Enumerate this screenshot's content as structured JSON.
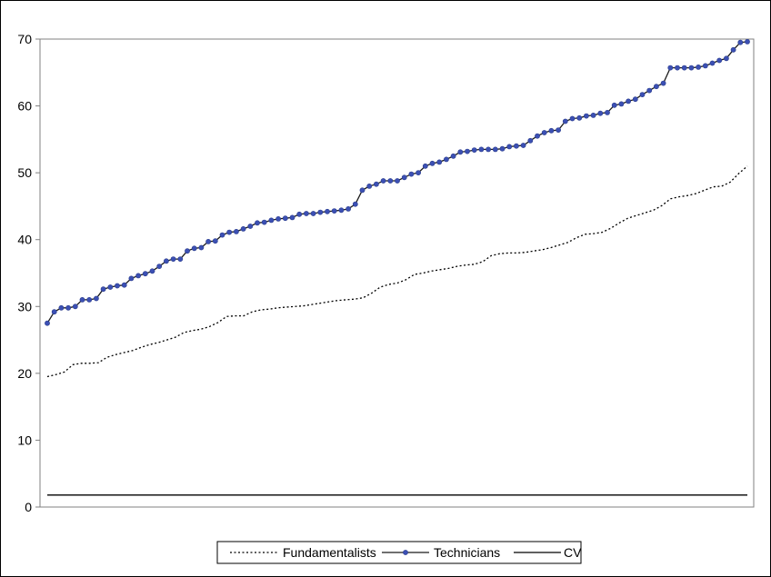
{
  "chart_data": {
    "type": "line",
    "title": "",
    "xlabel": "",
    "ylabel": "",
    "ylim": [
      0,
      70
    ],
    "y_ticks": [
      "0",
      "10",
      "20",
      "30",
      "40",
      "50",
      "60",
      "70"
    ],
    "grid": false,
    "legend_position": "bottom",
    "series": [
      {
        "name": "Fundamentalists",
        "style": "dotted",
        "color": "#000000",
        "values": [
          19.5,
          19.8,
          20.2,
          21.3,
          21.5,
          21.5,
          21.6,
          22.4,
          22.8,
          23.1,
          23.4,
          23.9,
          24.3,
          24.6,
          25.0,
          25.4,
          26.1,
          26.4,
          26.6,
          27.0,
          27.6,
          28.5,
          28.6,
          28.6,
          29.2,
          29.5,
          29.6,
          29.8,
          29.9,
          30.0,
          30.1,
          30.3,
          30.5,
          30.7,
          30.9,
          31.0,
          31.1,
          31.3,
          32.0,
          32.9,
          33.3,
          33.5,
          34.0,
          34.8,
          35.0,
          35.3,
          35.5,
          35.7,
          36.0,
          36.2,
          36.3,
          36.7,
          37.6,
          37.9,
          38.0,
          38.0,
          38.1,
          38.3,
          38.5,
          38.8,
          39.2,
          39.6,
          40.3,
          40.8,
          40.9,
          41.1,
          41.7,
          42.5,
          43.2,
          43.6,
          44.0,
          44.4,
          45.1,
          46.1,
          46.4,
          46.6,
          46.9,
          47.4,
          47.9,
          48.0,
          48.6,
          49.9,
          51.0
        ]
      },
      {
        "name": "Technicians",
        "style": "line-with-markers",
        "color": "#3c50b4",
        "values": [
          27.5,
          29.2,
          29.8,
          29.8,
          30.0,
          31.0,
          31.0,
          31.2,
          32.6,
          32.9,
          33.1,
          33.2,
          34.2,
          34.6,
          34.9,
          35.3,
          36.0,
          36.8,
          37.1,
          37.1,
          38.3,
          38.7,
          38.8,
          39.7,
          39.8,
          40.7,
          41.1,
          41.2,
          41.6,
          42.0,
          42.5,
          42.6,
          42.9,
          43.1,
          43.2,
          43.3,
          43.8,
          43.9,
          43.9,
          44.1,
          44.2,
          44.3,
          44.4,
          44.6,
          45.3,
          47.4,
          48.0,
          48.3,
          48.8,
          48.8,
          48.8,
          49.3,
          49.8,
          50.0,
          51.0,
          51.4,
          51.6,
          52.0,
          52.5,
          53.1,
          53.2,
          53.4,
          53.5,
          53.5,
          53.5,
          53.6,
          53.9,
          54.0,
          54.1,
          54.8,
          55.5,
          56.0,
          56.3,
          56.4,
          57.7,
          58.1,
          58.2,
          58.5,
          58.6,
          58.9,
          59.0,
          60.1,
          60.3,
          60.7,
          61.0,
          61.7,
          62.3,
          62.9,
          63.4,
          65.7,
          65.7,
          65.7,
          65.7,
          65.8,
          66.0,
          66.4,
          66.8,
          67.1,
          68.4,
          69.5,
          69.6
        ]
      },
      {
        "name": "CV",
        "style": "solid",
        "color": "#000000",
        "values": [
          1.8,
          1.8
        ]
      }
    ]
  }
}
